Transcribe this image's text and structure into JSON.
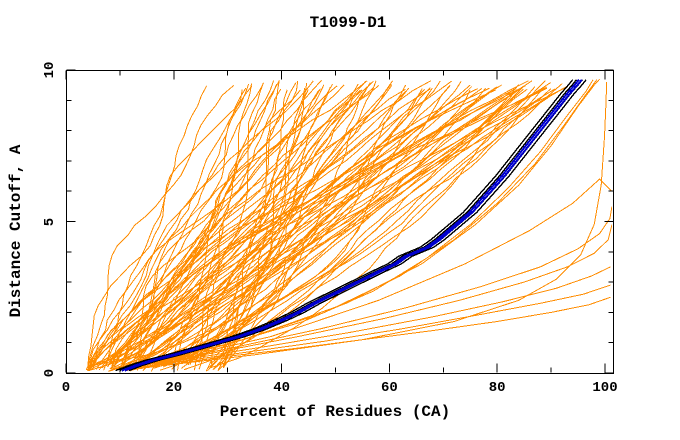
{
  "chart_data": {
    "type": "line",
    "title": "T1099-D1",
    "xlabel": "Percent of Residues (CA)",
    "ylabel": "Distance Cutoff, A",
    "xlim": [
      0,
      100
    ],
    "ylim": [
      0,
      10
    ],
    "grid": false,
    "legend": "none",
    "xticks": {
      "major_values": [
        0,
        20,
        40,
        60,
        80,
        100
      ],
      "major_labels": [
        "0",
        "20",
        "40",
        "60",
        "80",
        "100"
      ],
      "minor_values": [
        10,
        30,
        50,
        70,
        90
      ]
    },
    "yticks": {
      "major_values": [
        0,
        5,
        10
      ],
      "major_labels": [
        "0",
        "5",
        "10"
      ],
      "minor_values": [
        1,
        2,
        3,
        4,
        6,
        7,
        8,
        9
      ]
    },
    "colors": {
      "model_curves": "#ff8c00",
      "highlight_black": "#000000",
      "highlight_blue": "#0000cd",
      "axis": "#000000",
      "background": "#ffffff"
    },
    "series": [
      {
        "name": "orange-model-ensemble",
        "color": "#ff8c00",
        "style": "procedural-dense-fan",
        "procedural": {
          "count": 95,
          "seed": 7,
          "v_start_range": [
            0.05,
            0.35
          ],
          "v_top": 9.66,
          "start_percent_range": [
            4,
            30
          ],
          "top_percent_range": [
            26,
            96
          ],
          "shape_exponent_range": [
            0.6,
            1.5
          ],
          "wiggle_amp_range": [
            0.5,
            2.5
          ]
        }
      },
      {
        "name": "orange-outlier-curves",
        "color": "#ff8c00",
        "curves": [
          [
            [
              11,
              0.08
            ],
            [
              20,
              0.3
            ],
            [
              30,
              0.55
            ],
            [
              42,
              0.8
            ],
            [
              55,
              1.1
            ],
            [
              68,
              1.4
            ],
            [
              80,
              1.7
            ],
            [
              90,
              2.0
            ],
            [
              97,
              2.25
            ],
            [
              101,
              2.5
            ]
          ],
          [
            [
              12,
              0.12
            ],
            [
              22,
              0.4
            ],
            [
              34,
              0.7
            ],
            [
              48,
              1.05
            ],
            [
              62,
              1.45
            ],
            [
              76,
              1.9
            ],
            [
              88,
              2.3
            ],
            [
              96,
              2.6
            ],
            [
              101,
              2.9
            ]
          ],
          [
            [
              12.5,
              0.15
            ],
            [
              24,
              0.5
            ],
            [
              38,
              0.9
            ],
            [
              53,
              1.35
            ],
            [
              68,
              1.85
            ],
            [
              81,
              2.35
            ],
            [
              91,
              2.8
            ],
            [
              97.5,
              3.2
            ],
            [
              101,
              3.5
            ]
          ],
          [
            [
              13,
              0.2
            ],
            [
              27,
              0.65
            ],
            [
              43,
              1.2
            ],
            [
              59,
              1.8
            ],
            [
              73,
              2.4
            ],
            [
              85,
              3.0
            ],
            [
              93,
              3.5
            ],
            [
              98,
              3.95
            ],
            [
              100.6,
              4.4
            ],
            [
              101.3,
              4.9
            ]
          ],
          [
            [
              14,
              0.25
            ],
            [
              30,
              0.8
            ],
            [
              47,
              1.45
            ],
            [
              63,
              2.15
            ],
            [
              77,
              2.85
            ],
            [
              88,
              3.5
            ],
            [
              95,
              4.1
            ],
            [
              99,
              4.6
            ],
            [
              100.9,
              5.1
            ],
            [
              101.3,
              5.5
            ]
          ],
          [
            [
              16,
              0.2
            ],
            [
              35,
              0.6
            ],
            [
              55,
              1.1
            ],
            [
              72,
              1.7
            ],
            [
              84,
              2.4
            ],
            [
              91,
              3.1
            ],
            [
              95.5,
              3.9
            ],
            [
              98,
              4.9
            ],
            [
              99.3,
              6.2
            ],
            [
              99.9,
              7.8
            ],
            [
              100.2,
              9.0
            ],
            [
              100.3,
              9.6
            ]
          ],
          [
            [
              12,
              0.2
            ],
            [
              28,
              0.85
            ],
            [
              44,
              1.7
            ],
            [
              57,
              2.7
            ],
            [
              67,
              3.8
            ],
            [
              75,
              4.9
            ],
            [
              82,
              6.1
            ],
            [
              88,
              7.3
            ],
            [
              93,
              8.5
            ],
            [
              96.5,
              9.3
            ],
            [
              97.8,
              9.68
            ]
          ],
          [
            [
              13,
              0.25
            ],
            [
              31,
              1.0
            ],
            [
              48,
              2.0
            ],
            [
              62,
              3.2
            ],
            [
              72,
              4.4
            ],
            [
              80,
              5.6
            ],
            [
              87,
              6.9
            ],
            [
              92.5,
              8.2
            ],
            [
              96.5,
              9.2
            ],
            [
              98.5,
              9.68
            ]
          ],
          [
            [
              15,
              0.3
            ],
            [
              33,
              1.1
            ],
            [
              52,
              2.3
            ],
            [
              66,
              3.6
            ],
            [
              76,
              4.9
            ],
            [
              84,
              6.2
            ],
            [
              90,
              7.5
            ],
            [
              95,
              8.8
            ],
            [
              98,
              9.5
            ],
            [
              99,
              9.7
            ]
          ],
          [
            [
              17,
              0.35
            ],
            [
              38,
              1.2
            ],
            [
              58,
              2.4
            ],
            [
              74,
              3.6
            ],
            [
              86,
              4.7
            ],
            [
              94,
              5.6
            ],
            [
              99,
              6.4
            ],
            [
              101.2,
              6.0
            ]
          ]
        ]
      },
      {
        "name": "black-highlight-bundle",
        "color": "#000000",
        "percent_offsets": [
          -1.3,
          -0.6,
          0.5,
          1.2
        ],
        "path": [
          [
            10.5,
            0.08
          ],
          [
            13,
            0.25
          ],
          [
            16,
            0.42
          ],
          [
            20,
            0.6
          ],
          [
            24,
            0.8
          ],
          [
            28,
            1.0
          ],
          [
            32,
            1.2
          ],
          [
            36,
            1.45
          ],
          [
            40,
            1.75
          ],
          [
            43,
            2.0
          ],
          [
            46,
            2.3
          ],
          [
            50,
            2.65
          ],
          [
            54,
            3.0
          ],
          [
            58,
            3.35
          ],
          [
            61,
            3.6
          ],
          [
            63,
            3.85
          ],
          [
            65,
            4.0
          ],
          [
            67,
            4.15
          ],
          [
            69,
            4.4
          ],
          [
            71,
            4.7
          ],
          [
            73,
            5.0
          ],
          [
            75,
            5.3
          ],
          [
            77,
            5.7
          ],
          [
            79,
            6.1
          ],
          [
            81,
            6.5
          ],
          [
            83,
            6.95
          ],
          [
            85,
            7.4
          ],
          [
            87,
            7.85
          ],
          [
            89,
            8.3
          ],
          [
            91,
            8.75
          ],
          [
            93,
            9.2
          ],
          [
            94.5,
            9.5
          ],
          [
            95.3,
            9.68
          ]
        ]
      },
      {
        "name": "blue-highlight-bundle",
        "color": "#0000cd",
        "percent_offsets": [
          -0.15,
          0.4
        ],
        "path": [
          [
            10.5,
            0.08
          ],
          [
            13,
            0.25
          ],
          [
            16,
            0.42
          ],
          [
            20,
            0.6
          ],
          [
            24,
            0.8
          ],
          [
            28,
            1.0
          ],
          [
            32,
            1.2
          ],
          [
            36,
            1.45
          ],
          [
            40,
            1.75
          ],
          [
            43,
            2.0
          ],
          [
            46,
            2.3
          ],
          [
            50,
            2.65
          ],
          [
            54,
            3.0
          ],
          [
            58,
            3.35
          ],
          [
            61,
            3.6
          ],
          [
            63,
            3.85
          ],
          [
            65,
            4.0
          ],
          [
            67,
            4.15
          ],
          [
            69,
            4.4
          ],
          [
            71,
            4.7
          ],
          [
            73,
            5.0
          ],
          [
            75,
            5.3
          ],
          [
            77,
            5.7
          ],
          [
            79,
            6.1
          ],
          [
            81,
            6.5
          ],
          [
            83,
            6.95
          ],
          [
            85,
            7.4
          ],
          [
            87,
            7.85
          ],
          [
            89,
            8.3
          ],
          [
            91,
            8.75
          ],
          [
            93,
            9.2
          ],
          [
            94.5,
            9.5
          ],
          [
            95.3,
            9.68
          ]
        ]
      }
    ]
  }
}
